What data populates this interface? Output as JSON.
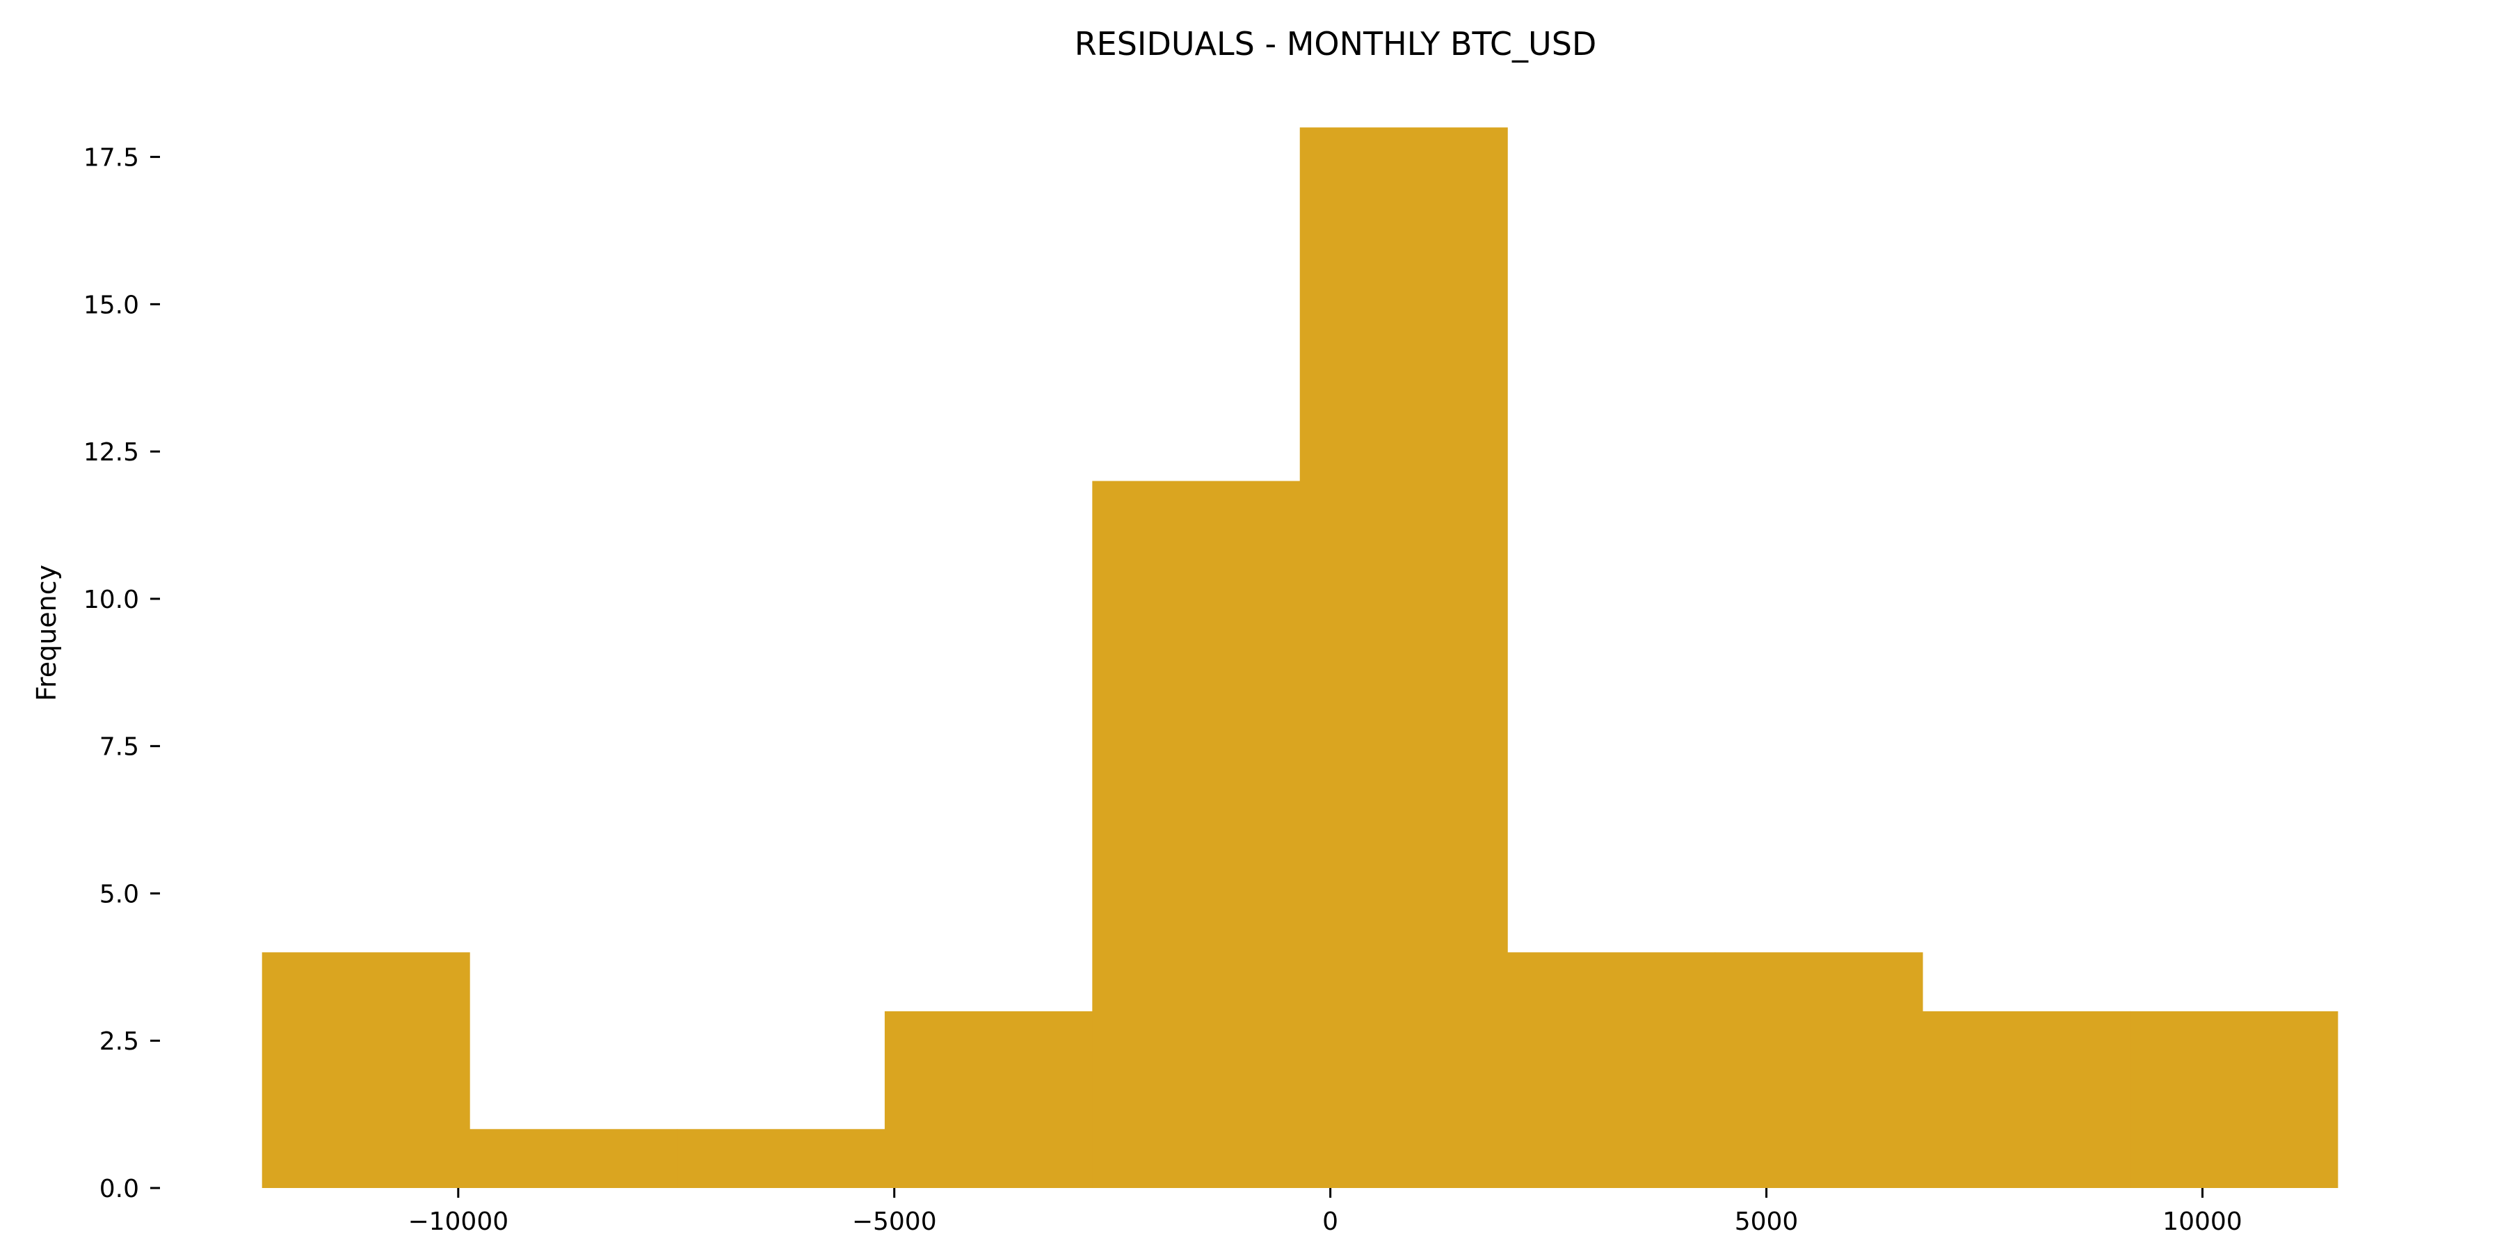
{
  "chart_data": {
    "type": "bar",
    "histogram": true,
    "title": "RESIDUALS - MONTHLY BTC_USD",
    "xlabel": "",
    "ylabel": "Frequency",
    "bins": [
      {
        "start": -12250,
        "end": -9870,
        "count": 4
      },
      {
        "start": -9870,
        "end": -7490,
        "count": 1
      },
      {
        "start": -7490,
        "end": -5110,
        "count": 1
      },
      {
        "start": -5110,
        "end": -2730,
        "count": 3
      },
      {
        "start": -2730,
        "end": -350,
        "count": 12
      },
      {
        "start": -350,
        "end": 2030,
        "count": 18
      },
      {
        "start": 2030,
        "end": 4410,
        "count": 4
      },
      {
        "start": 4410,
        "end": 6790,
        "count": 4
      },
      {
        "start": 6790,
        "end": 9170,
        "count": 3
      },
      {
        "start": 9170,
        "end": 11550,
        "count": 3
      }
    ],
    "xlim": [
      -13420,
      12740
    ],
    "ylim": [
      0,
      18.9
    ],
    "xticks": [
      {
        "value": -10000,
        "label": "−10000"
      },
      {
        "value": -5000,
        "label": "−5000"
      },
      {
        "value": 0,
        "label": "0"
      },
      {
        "value": 5000,
        "label": "5000"
      },
      {
        "value": 10000,
        "label": "10000"
      }
    ],
    "yticks": [
      {
        "value": 0,
        "label": "0.0"
      },
      {
        "value": 2.5,
        "label": "2.5"
      },
      {
        "value": 5,
        "label": "5.0"
      },
      {
        "value": 7.5,
        "label": "7.5"
      },
      {
        "value": 10,
        "label": "10.0"
      },
      {
        "value": 12.5,
        "label": "12.5"
      },
      {
        "value": 15,
        "label": "15.0"
      },
      {
        "value": 17.5,
        "label": "17.5"
      }
    ],
    "grid": false,
    "legend": "none",
    "bar_color": "#DAA520",
    "spines_visible": false
  }
}
